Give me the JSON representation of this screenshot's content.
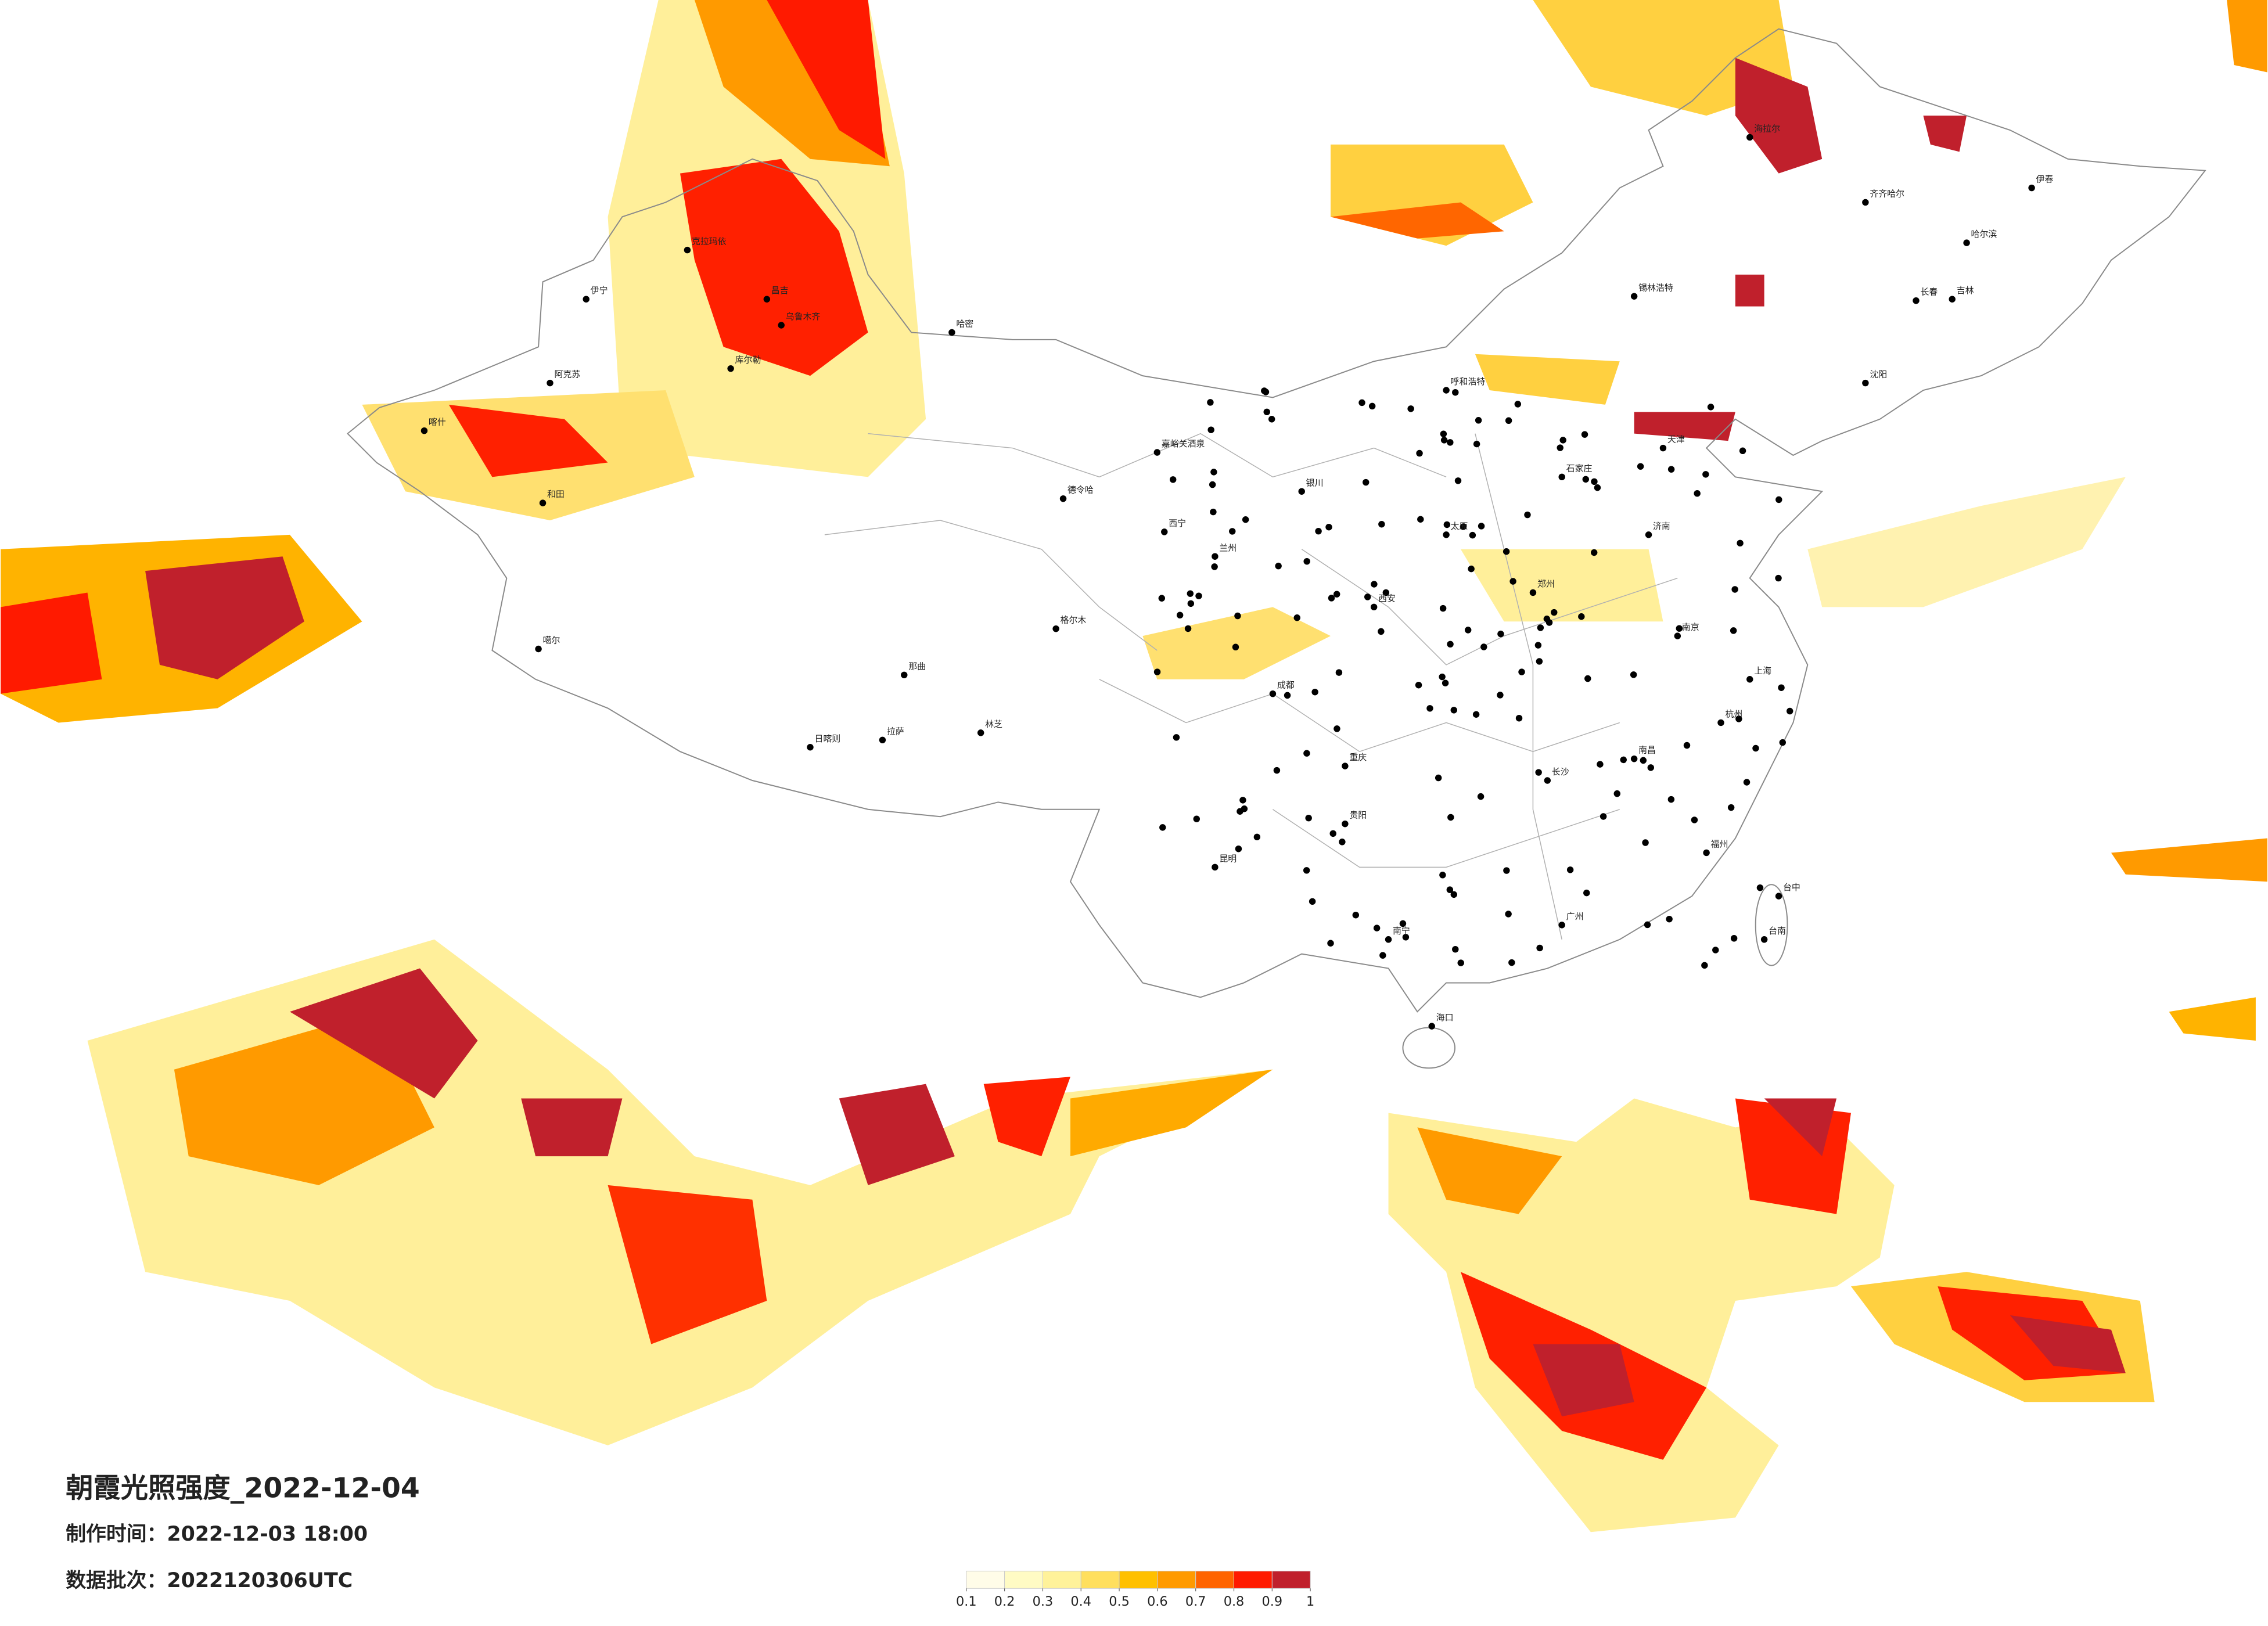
{
  "title": "朝霞光照强度_2022-12-04",
  "made_time": "制作时间：2022-12-03 18:00",
  "batch": "数据批次：2022120306UTC",
  "colorbar": {
    "ticks": [
      0.1,
      0.2,
      0.3,
      0.4,
      0.5,
      0.6,
      0.7,
      0.8,
      0.9,
      1
    ],
    "colors": [
      "#fffce8",
      "#fffbc4",
      "#fff29a",
      "#ffdf5e",
      "#ffc000",
      "#ff9a00",
      "#ff6400",
      "#ff1a00",
      "#c0202c"
    ]
  },
  "cities": [
    "伊宁",
    "阿克苏",
    "喀什",
    "和田",
    "克拉玛依",
    "昌吉",
    "乌鲁木齐",
    "库尔勒",
    "哈密",
    "嘉峪关酒泉",
    "德令哈",
    "格尔木",
    "噶尔",
    "日喀则",
    "拉萨",
    "林芝",
    "那曲",
    "呼和浩特",
    "西宁",
    "兰州",
    "哈尔滨",
    "长春",
    "沈阳",
    "齐齐哈尔",
    "海拉尔",
    "锡林浩特",
    "南昌",
    "长沙",
    "台中",
    "台南",
    "海口",
    "伊春",
    "吉林",
    "太原",
    "郑州",
    "济南",
    "南京",
    "上海",
    "杭州",
    "福州",
    "广州",
    "南宁",
    "贵阳",
    "昆明",
    "重庆",
    "成都",
    "西安",
    "银川",
    "石家庄",
    "天津"
  ]
}
